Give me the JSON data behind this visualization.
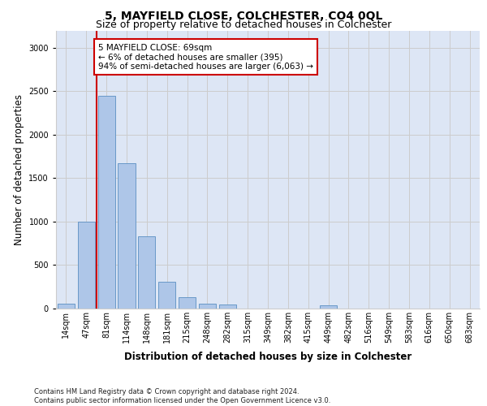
{
  "title": "5, MAYFIELD CLOSE, COLCHESTER, CO4 0QL",
  "subtitle": "Size of property relative to detached houses in Colchester",
  "xlabel": "Distribution of detached houses by size in Colchester",
  "ylabel": "Number of detached properties",
  "bar_labels": [
    "14sqm",
    "47sqm",
    "81sqm",
    "114sqm",
    "148sqm",
    "181sqm",
    "215sqm",
    "248sqm",
    "282sqm",
    "315sqm",
    "349sqm",
    "382sqm",
    "415sqm",
    "449sqm",
    "482sqm",
    "516sqm",
    "549sqm",
    "583sqm",
    "616sqm",
    "650sqm",
    "683sqm"
  ],
  "bar_values": [
    60,
    1000,
    2450,
    1670,
    830,
    310,
    130,
    55,
    45,
    0,
    0,
    0,
    0,
    35,
    0,
    0,
    0,
    0,
    0,
    0,
    0
  ],
  "bar_color": "#aec6e8",
  "bar_edgecolor": "#5a8fc2",
  "vline_x": 1.5,
  "vline_color": "#cc0000",
  "annotation_text": "5 MAYFIELD CLOSE: 69sqm\n← 6% of detached houses are smaller (395)\n94% of semi-detached houses are larger (6,063) →",
  "annotation_box_edgecolor": "#cc0000",
  "annotation_box_facecolor": "#ffffff",
  "ylim": [
    0,
    3200
  ],
  "yticks": [
    0,
    500,
    1000,
    1500,
    2000,
    2500,
    3000
  ],
  "grid_color": "#cccccc",
  "background_color": "#dde6f5",
  "footer_text": "Contains HM Land Registry data © Crown copyright and database right 2024.\nContains public sector information licensed under the Open Government Licence v3.0.",
  "title_fontsize": 10,
  "subtitle_fontsize": 9,
  "ylabel_fontsize": 8.5,
  "xlabel_fontsize": 8.5,
  "tick_fontsize": 7,
  "annotation_fontsize": 7.5,
  "footer_fontsize": 6
}
